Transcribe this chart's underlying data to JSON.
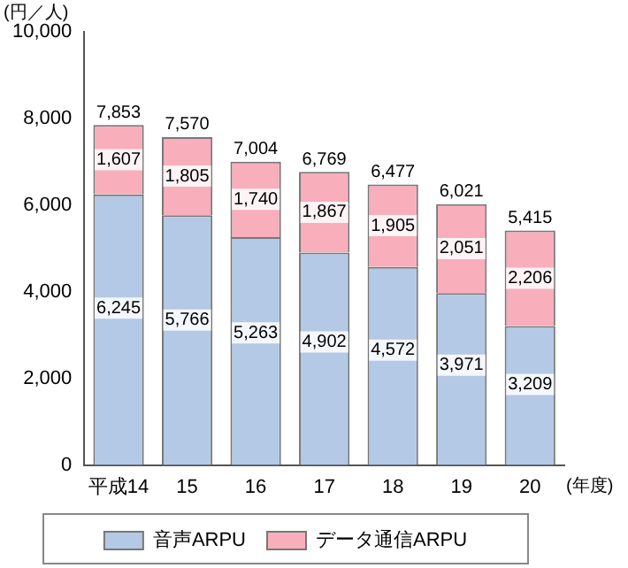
{
  "chart_data": {
    "type": "bar",
    "stacked": true,
    "ylabel": "(円／人)",
    "xlabel": "(年度)",
    "categories": [
      "平成14",
      "15",
      "16",
      "17",
      "18",
      "19",
      "20"
    ],
    "series": [
      {
        "name": "音声ARPU",
        "color": "#b3c9e6",
        "values": [
          6245,
          5766,
          5263,
          4902,
          4572,
          3971,
          3209
        ],
        "value_labels": [
          "6,245",
          "5,766",
          "5,263",
          "4,902",
          "4,572",
          "3,971",
          "3,209"
        ]
      },
      {
        "name": "データ通信ARPU",
        "color": "#f8aebb",
        "values": [
          1607,
          1805,
          1740,
          1867,
          1905,
          2051,
          2206
        ],
        "value_labels": [
          "1,607",
          "1,805",
          "1,740",
          "1,867",
          "1,905",
          "2,051",
          "2,206"
        ]
      }
    ],
    "totals": [
      "7,853",
      "7,570",
      "7,004",
      "6,769",
      "6,477",
      "6,021",
      "5,415"
    ],
    "ylim": [
      0,
      10000
    ],
    "yticks": [
      0,
      {
        "value": 2000,
        "label": "2,000"
      },
      {
        "value": 4000,
        "label": "4,000"
      },
      {
        "value": 6000,
        "label": "6,000"
      },
      {
        "value": 8000,
        "label": "8,000"
      },
      {
        "value": 10000,
        "label": "10,000"
      }
    ],
    "grid": false,
    "legend": "bottom"
  }
}
